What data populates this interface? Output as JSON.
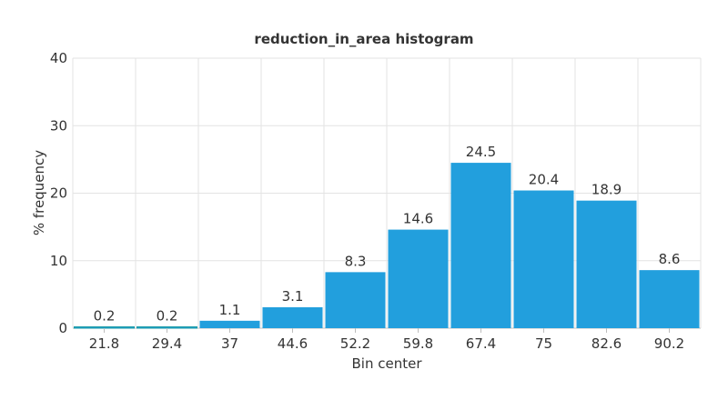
{
  "chart_data": {
    "type": "bar",
    "title": "reduction_in_area histogram",
    "xlabel": "Bin center",
    "ylabel": "% frequency",
    "categories": [
      "21.8",
      "29.4",
      "37",
      "44.6",
      "52.2",
      "59.8",
      "67.4",
      "75",
      "82.6",
      "90.2"
    ],
    "values": [
      0.2,
      0.2,
      1.1,
      3.1,
      8.3,
      14.6,
      24.5,
      20.4,
      18.9,
      8.6
    ],
    "value_labels": [
      "0.2",
      "0.2",
      "1.1",
      "3.1",
      "8.3",
      "14.6",
      "24.5",
      "20.4",
      "18.9",
      "8.6"
    ],
    "ylim": [
      0,
      40
    ],
    "yticks": [
      0,
      10,
      20,
      30,
      40
    ],
    "grid": true,
    "bar_color": "#229fdd",
    "bar_edge_color": "#1a9aa6"
  }
}
